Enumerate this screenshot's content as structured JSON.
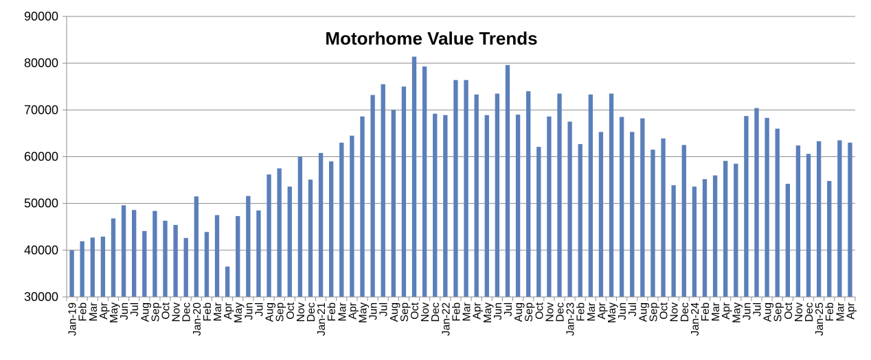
{
  "chart_data": {
    "type": "bar",
    "title": "Motorhome Value Trends",
    "xlabel": "",
    "ylabel": "",
    "ylim": [
      30000,
      90000
    ],
    "yticks": [
      30000,
      40000,
      50000,
      60000,
      70000,
      80000,
      90000
    ],
    "grid": true,
    "legend": "none",
    "bar_color": "#5B7FBA",
    "grid_color": "#8C8C8C",
    "categories": [
      "Jan-19",
      "Feb",
      "Mar",
      "Apr",
      "May",
      "Jun",
      "Jul",
      "Aug",
      "Sep",
      "Oct",
      "Nov",
      "Dec",
      "Jan-20",
      "Feb",
      "Mar",
      "Apr",
      "May",
      "Jun",
      "Jul",
      "Aug",
      "Sep",
      "Oct",
      "Nov",
      "Dec",
      "Jan-21",
      "Feb",
      "Mar",
      "Apr",
      "May",
      "Jun",
      "Jul",
      "Aug",
      "Sep",
      "Oct",
      "Nov",
      "Dec",
      "Jan-22",
      "Feb",
      "Mar",
      "Apr",
      "May",
      "Jun",
      "Jul",
      "Aug",
      "Sep",
      "Oct",
      "Nov",
      "Dec",
      "Jan-23",
      "Feb",
      "Mar",
      "Apr",
      "May",
      "Jun",
      "Jul",
      "Aug",
      "Sep",
      "Oct",
      "Nov",
      "Dec",
      "Jan-24",
      "Feb",
      "Mar",
      "Apr",
      "May",
      "Jun",
      "Jul",
      "Aug",
      "Sep",
      "Oct",
      "Nov",
      "Dec",
      "Jan-25",
      "Feb",
      "Mar",
      "Apr"
    ],
    "values": [
      40000,
      41900,
      42700,
      42900,
      46800,
      49600,
      48600,
      44100,
      48400,
      46300,
      45400,
      42600,
      51500,
      43900,
      47500,
      36500,
      47300,
      51600,
      48500,
      56200,
      57500,
      53600,
      60000,
      55100,
      60800,
      59000,
      63000,
      64500,
      68600,
      73200,
      75500,
      70000,
      75000,
      81400,
      79300,
      69200,
      68900,
      76400,
      76400,
      73300,
      68900,
      73500,
      79600,
      69000,
      74000,
      62100,
      68600,
      73500,
      67500,
      62700,
      73300,
      65300,
      73500,
      68500,
      65300,
      68200,
      61500,
      63900,
      53900,
      62500,
      53600,
      55200,
      56000,
      59100,
      58500,
      68700,
      70400,
      68300,
      66000,
      54200,
      62400,
      60600,
      63300,
      54800,
      63500,
      63000
    ]
  }
}
